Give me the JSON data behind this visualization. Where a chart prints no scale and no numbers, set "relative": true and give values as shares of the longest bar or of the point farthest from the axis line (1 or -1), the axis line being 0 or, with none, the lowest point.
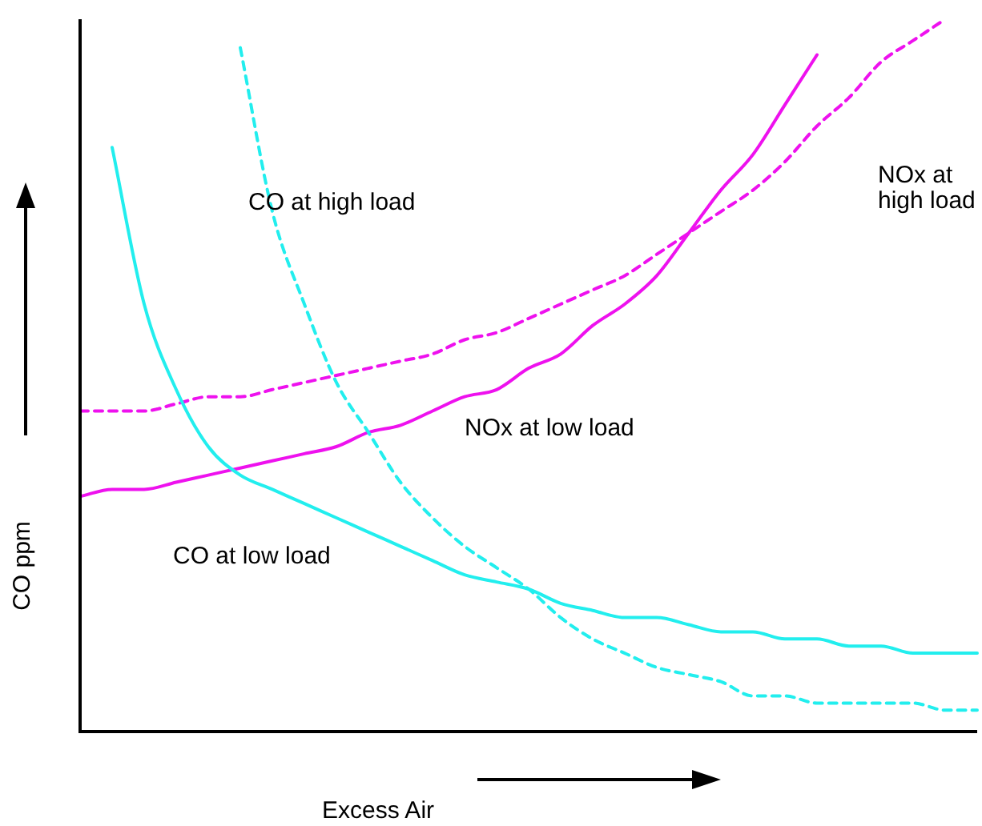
{
  "chart_data": {
    "type": "line",
    "relative": true,
    "xlabel": "Excess Air",
    "ylabel": "CO ppm",
    "marker": "none",
    "legend": false,
    "categories": [
      null,
      null,
      null,
      null,
      null,
      null,
      null,
      null,
      null,
      null,
      null,
      null,
      null,
      null,
      null,
      null,
      null,
      null,
      null,
      null,
      null,
      null,
      null,
      null,
      null,
      null,
      null,
      null,
      null
    ],
    "series": [
      {
        "name": "CO at low load",
        "color": "#22eeee",
        "line_style": "solid",
        "values": [
          null,
          0.82,
          0.6,
          0.48,
          0.4,
          0.36,
          0.34,
          0.32,
          0.3,
          0.28,
          0.26,
          0.24,
          0.22,
          0.21,
          0.2,
          0.18,
          0.17,
          0.16,
          0.16,
          0.15,
          0.14,
          0.14,
          0.13,
          0.13,
          0.12,
          0.12,
          0.11,
          0.11,
          0.11
        ]
      },
      {
        "name": "CO at high load",
        "color": "#22eeee",
        "line_style": "dashed",
        "values": [
          null,
          null,
          null,
          null,
          null,
          0.96,
          0.73,
          0.6,
          0.49,
          0.42,
          0.35,
          0.3,
          0.26,
          0.23,
          0.2,
          0.16,
          0.13,
          0.11,
          0.09,
          0.08,
          0.07,
          0.05,
          0.05,
          0.04,
          0.04,
          0.04,
          0.04,
          0.03,
          0.03
        ]
      },
      {
        "name": "NOx at low load",
        "color": "#ee11ee",
        "line_style": "solid",
        "values": [
          0.33,
          0.34,
          0.34,
          0.35,
          0.36,
          0.37,
          0.38,
          0.39,
          0.4,
          0.42,
          0.43,
          0.45,
          0.47,
          0.48,
          0.51,
          0.53,
          0.57,
          0.6,
          0.64,
          0.7,
          0.76,
          0.81,
          0.88,
          0.95,
          null,
          null,
          null,
          null,
          null
        ]
      },
      {
        "name": "NOx at high load",
        "color": "#ee11ee",
        "line_style": "dashed",
        "values": [
          0.45,
          0.45,
          0.45,
          0.46,
          0.47,
          0.47,
          0.48,
          0.49,
          0.5,
          0.51,
          0.52,
          0.53,
          0.55,
          0.56,
          0.58,
          0.6,
          0.62,
          0.64,
          0.67,
          0.7,
          0.73,
          0.76,
          0.8,
          0.85,
          0.89,
          0.94,
          0.97,
          1.0,
          null
        ]
      }
    ]
  }
}
